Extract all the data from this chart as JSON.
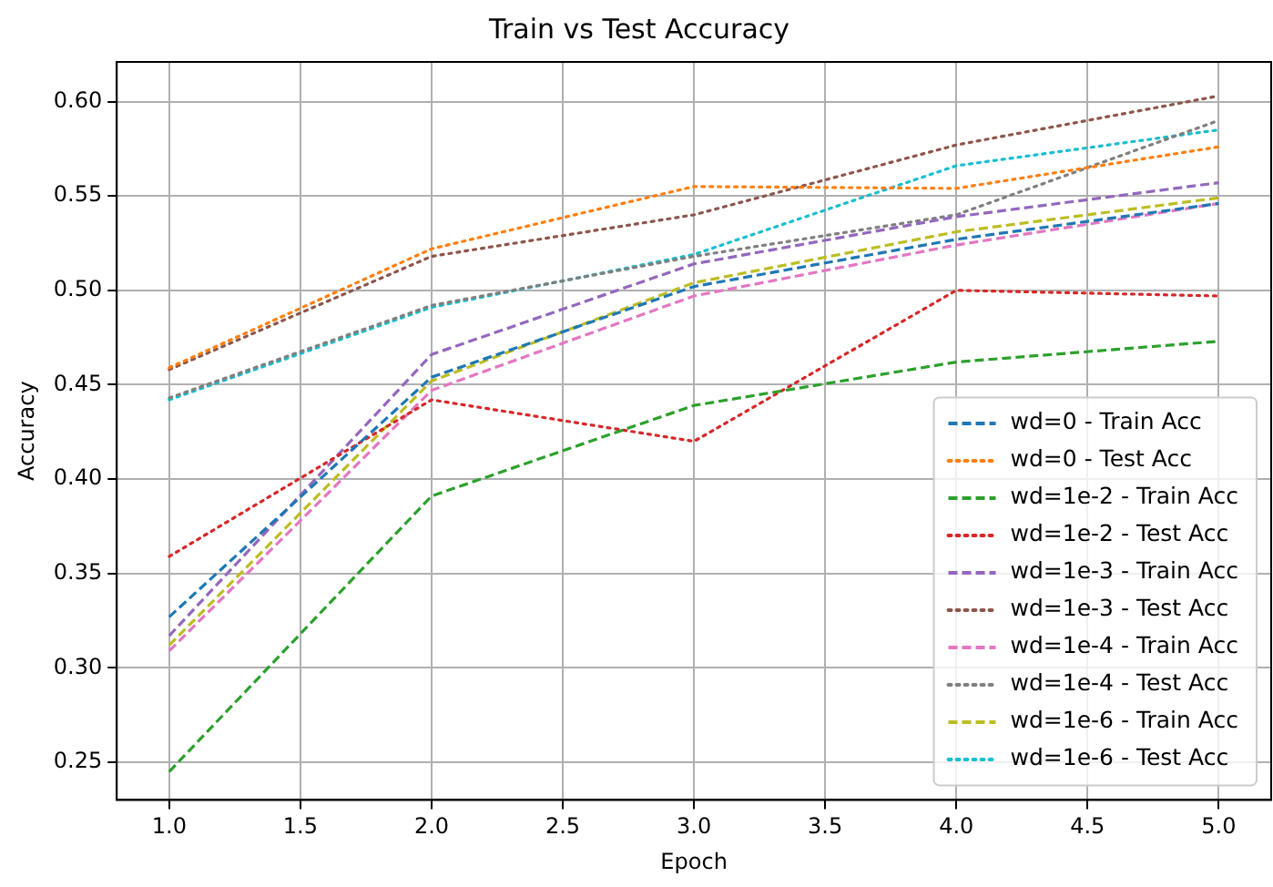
{
  "chart_data": {
    "type": "line",
    "title": "Train vs Test Accuracy",
    "xlabel": "Epoch",
    "ylabel": "Accuracy",
    "x": [
      1,
      2,
      3,
      4,
      5
    ],
    "xlim": [
      0.8,
      5.2
    ],
    "xticks": [
      {
        "value": 1,
        "label": "1.0"
      },
      {
        "value": 1.5,
        "label": "1.5"
      },
      {
        "value": 2,
        "label": "2.0"
      },
      {
        "value": 2.5,
        "label": "2.5"
      },
      {
        "value": 3,
        "label": "3.0"
      },
      {
        "value": 3.5,
        "label": "3.5"
      },
      {
        "value": 4,
        "label": "4.0"
      },
      {
        "value": 4.5,
        "label": "4.5"
      },
      {
        "value": 5,
        "label": "5.0"
      }
    ],
    "ylim": [
      0.23,
      0.621
    ],
    "yticks": [
      {
        "value": 0.25,
        "label": "0.25"
      },
      {
        "value": 0.3,
        "label": "0.30"
      },
      {
        "value": 0.35,
        "label": "0.35"
      },
      {
        "value": 0.4,
        "label": "0.40"
      },
      {
        "value": 0.45,
        "label": "0.45"
      },
      {
        "value": 0.5,
        "label": "0.50"
      },
      {
        "value": 0.55,
        "label": "0.55"
      },
      {
        "value": 0.6,
        "label": "0.60"
      }
    ],
    "grid": true,
    "legend": "bottom right",
    "marker": "none",
    "series": [
      {
        "name": "wd=0 - Train Acc",
        "color": "#1f77b4",
        "line_style": "dashed",
        "values": [
          0.327,
          0.454,
          0.502,
          0.527,
          0.546
        ]
      },
      {
        "name": "wd=0 - Test Acc",
        "color": "#ff7f0e",
        "line_style": "dotted",
        "values": [
          0.459,
          0.522,
          0.555,
          0.554,
          0.576
        ]
      },
      {
        "name": "wd=1e-2 - Train Acc",
        "color": "#2ca02c",
        "line_style": "dashed",
        "values": [
          0.245,
          0.391,
          0.439,
          0.462,
          0.473
        ]
      },
      {
        "name": "wd=1e-2 - Test Acc",
        "color": "#d62728",
        "line_style": "dotted",
        "values": [
          0.359,
          0.442,
          0.42,
          0.5,
          0.497
        ]
      },
      {
        "name": "wd=1e-3 - Train Acc",
        "color": "#9467bd",
        "line_style": "dashed",
        "values": [
          0.317,
          0.466,
          0.514,
          0.539,
          0.557
        ]
      },
      {
        "name": "wd=1e-3 - Test Acc",
        "color": "#8c564b",
        "line_style": "dotted",
        "values": [
          0.458,
          0.518,
          0.54,
          0.577,
          0.603
        ]
      },
      {
        "name": "wd=1e-4 - Train Acc",
        "color": "#e377c2",
        "line_style": "dashed",
        "values": [
          0.309,
          0.447,
          0.497,
          0.524,
          0.546
        ]
      },
      {
        "name": "wd=1e-4 - Test Acc",
        "color": "#7f7f7f",
        "line_style": "dotted",
        "values": [
          0.443,
          0.492,
          0.518,
          0.54,
          0.59
        ]
      },
      {
        "name": "wd=1e-6 - Train Acc",
        "color": "#bcbd22",
        "line_style": "dashed",
        "values": [
          0.312,
          0.452,
          0.504,
          0.531,
          0.549
        ]
      },
      {
        "name": "wd=1e-6 - Test Acc",
        "color": "#17becf",
        "line_style": "dotted",
        "values": [
          0.442,
          0.491,
          0.519,
          0.566,
          0.585
        ]
      }
    ]
  }
}
